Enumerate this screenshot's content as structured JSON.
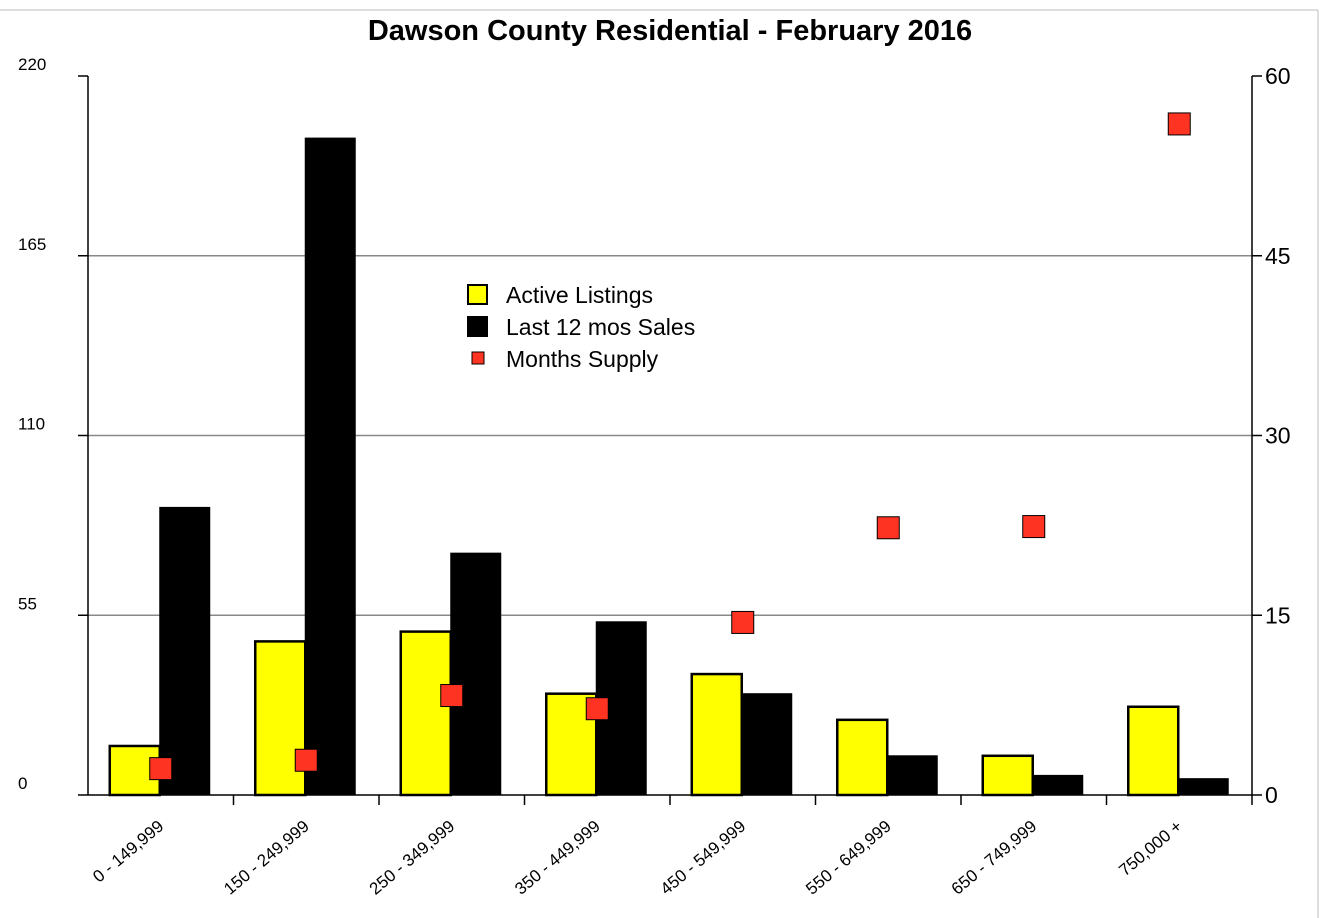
{
  "chart_data": {
    "type": "bar",
    "title": "Dawson County Residential - February 2016",
    "categories": [
      "0 - 149,999",
      "150 - 249,999",
      "250 - 349,999",
      "350 - 449,999",
      "450 - 549,999",
      "550 - 649,999",
      "650 - 749,999",
      "750,000 +"
    ],
    "series": [
      {
        "name": "Active Listings",
        "axis": "left",
        "color": "#ffff00",
        "values": [
          15,
          47,
          50,
          31,
          37,
          23,
          12,
          27
        ]
      },
      {
        "name": "Last 12 mos Sales",
        "axis": "left",
        "color": "#000000",
        "values": [
          88,
          201,
          74,
          53,
          31,
          12,
          6,
          5
        ]
      },
      {
        "name": "Months Supply",
        "axis": "right",
        "marker": "square",
        "color": "#ff3322",
        "values": [
          2.2,
          2.9,
          8.3,
          7.2,
          14.4,
          22.3,
          22.4,
          56
        ]
      }
    ],
    "y_left": {
      "ylim": [
        0,
        220
      ],
      "ticks": [
        "0",
        "55",
        "110",
        "165",
        "220"
      ]
    },
    "y_right": {
      "ylim": [
        0,
        60
      ],
      "ticks": [
        "0",
        "15",
        "30",
        "45",
        "60"
      ]
    },
    "grid": true,
    "legend_position": "center"
  }
}
